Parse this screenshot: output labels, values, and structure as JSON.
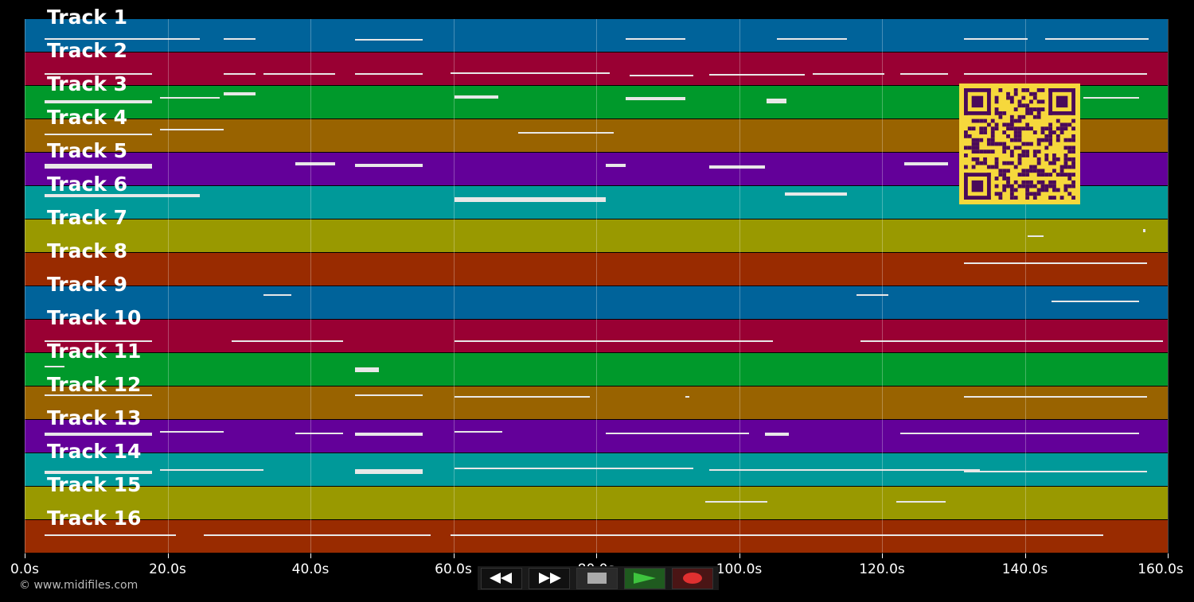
{
  "tracks": [
    {
      "label": "Track 1",
      "color": "#00639a"
    },
    {
      "label": "Track 2",
      "color": "#990033"
    },
    {
      "label": "Track 3",
      "color": "#00992b"
    },
    {
      "label": "Track 4",
      "color": "#996300"
    },
    {
      "label": "Track 5",
      "color": "#630099"
    },
    {
      "label": "Track 6",
      "color": "#009999"
    },
    {
      "label": "Track 7",
      "color": "#999900"
    },
    {
      "label": "Track 8",
      "color": "#992b00"
    },
    {
      "label": "Track 9",
      "color": "#00639a"
    },
    {
      "label": "Track 10",
      "color": "#990033"
    },
    {
      "label": "Track 11",
      "color": "#00992b"
    },
    {
      "label": "Track 12",
      "color": "#996300"
    },
    {
      "label": "Track 13",
      "color": "#630099"
    },
    {
      "label": "Track 14",
      "color": "#009999"
    },
    {
      "label": "Track 15",
      "color": "#999900"
    },
    {
      "label": "Track 16",
      "color": "#992b00"
    }
  ],
  "timeline": {
    "ticks": [
      "0.0s",
      "20.0s",
      "40.0s",
      "60.0s",
      "80.0s",
      "100.0s",
      "120.0s",
      "140.0s",
      "160.0s"
    ]
  },
  "copyright": "© www.midifiles.com",
  "controls": {
    "rewind_icon": "rewind-icon",
    "forward_icon": "fast-forward-icon",
    "stop_icon": "stop-icon",
    "play_icon": "play-icon",
    "record_icon": "record-icon",
    "play_color": "#3ec43e",
    "record_color": "#e03030"
  },
  "qr_color": "#f6d83c"
}
